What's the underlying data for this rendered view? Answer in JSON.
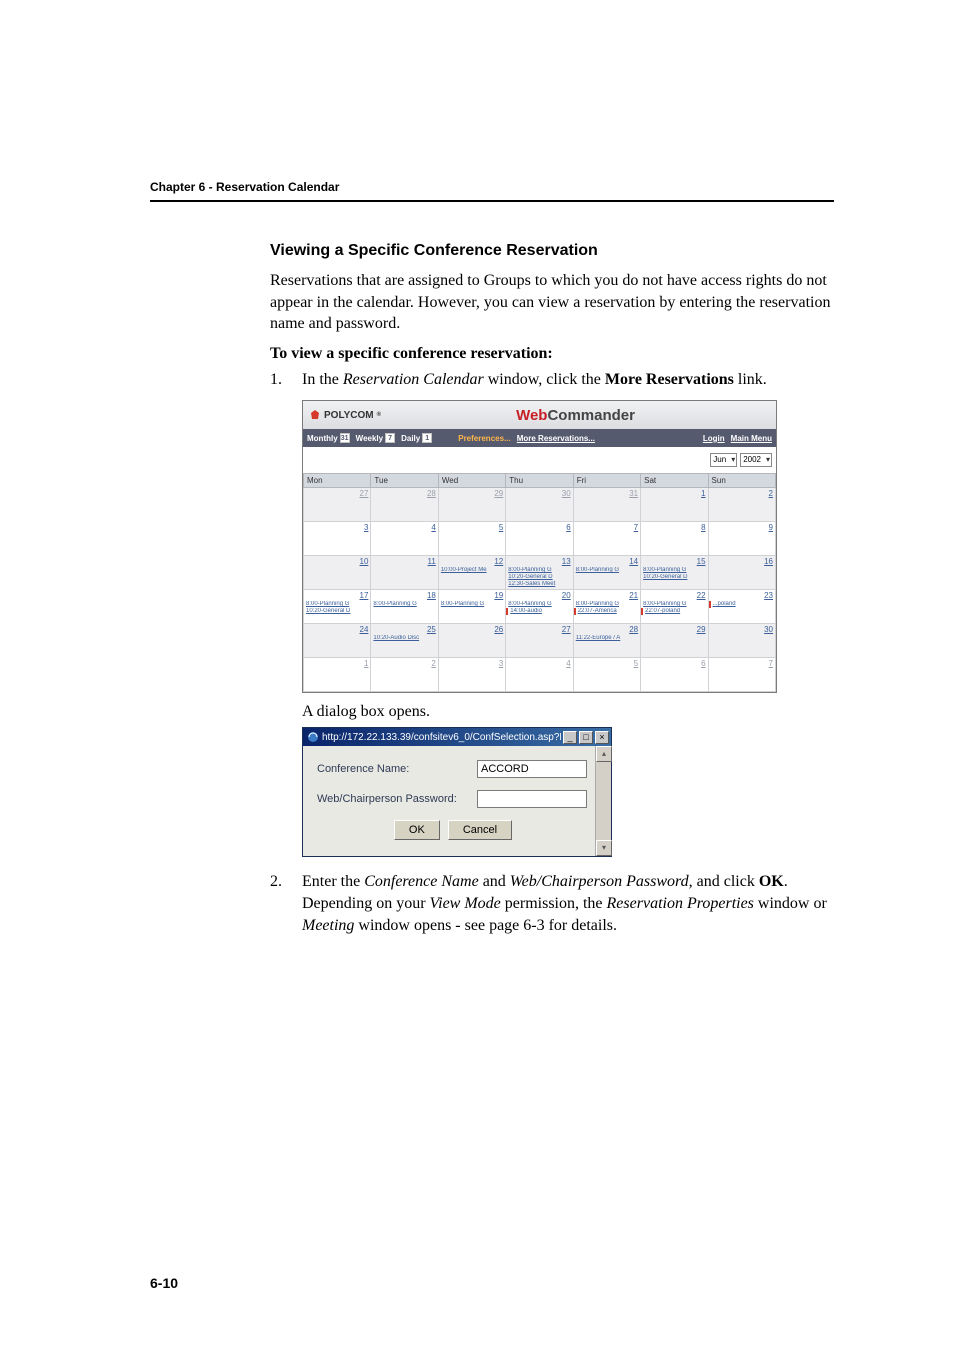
{
  "header": {
    "chapter": "Chapter 6 - Reservation Calendar"
  },
  "section": {
    "title": "Viewing a Specific Conference Reservation",
    "intro": "Reservations that are assigned to Groups to which you do not have access rights do not appear in the calendar. However, you can view a reservation by entering the reservation name and password.",
    "proc_title": "To view a specific conference reservation:"
  },
  "step1": {
    "num": "1.",
    "pre": "In the ",
    "win": "Reservation Calendar",
    "mid": " window, click the ",
    "link": "More Reservations",
    "post": " link."
  },
  "caption_dialog": "A dialog box opens.",
  "step2": {
    "num": "2.",
    "line1_pre": "Enter the ",
    "line1_i1": "Conference Name",
    "line1_mid": " and ",
    "line1_i2": "Web/Chairperson Password,",
    "line1_post": " and click ",
    "line1_b": "OK",
    "line1_end": ".",
    "line2_pre": "Depending on your ",
    "line2_i1": "View Mode",
    "line2_mid": " permission, the ",
    "line2_i2": "Reservation Properties",
    "line2_post": " window or ",
    "line2_i3": "Meeting",
    "line2_end": " window opens - see page 6-3 for details."
  },
  "page_num": "6-10",
  "cal": {
    "brand": "POLYCOM",
    "wc_web": "Web",
    "wc_rest": "Commander",
    "menu": {
      "monthly": "Monthly",
      "weekly": "Weekly",
      "daily": "Daily",
      "prefs": "Preferences...",
      "more": "More Reservations...",
      "login": "Login",
      "main_menu": "Main Menu",
      "month": "Jun",
      "year": "2002"
    },
    "days": [
      "Mon",
      "Tue",
      "Wed",
      "Thu",
      "Fri",
      "Sat",
      "Sun"
    ],
    "weeks": [
      {
        "cells": [
          {
            "n": "27",
            "faded": true
          },
          {
            "n": "28",
            "faded": true
          },
          {
            "n": "29",
            "faded": true
          },
          {
            "n": "30",
            "faded": true
          },
          {
            "n": "31",
            "faded": true
          },
          {
            "n": "1"
          },
          {
            "n": "2"
          }
        ]
      },
      {
        "cells": [
          {
            "n": "3"
          },
          {
            "n": "4"
          },
          {
            "n": "5"
          },
          {
            "n": "6"
          },
          {
            "n": "7"
          },
          {
            "n": "8"
          },
          {
            "n": "9"
          }
        ]
      },
      {
        "cells": [
          {
            "n": "10"
          },
          {
            "n": "11"
          },
          {
            "n": "12",
            "ev": [
              "10:00-Project Me"
            ]
          },
          {
            "n": "13",
            "ev": [
              "8:00-Planning G",
              "10:20-General D",
              "12:30-Sales Meet"
            ]
          },
          {
            "n": "14",
            "ev": [
              "8:00-Planning G"
            ]
          },
          {
            "n": "15",
            "ev": [
              "8:00-Planning G",
              "10:20-General D"
            ]
          },
          {
            "n": "16",
            "ev": []
          }
        ]
      },
      {
        "cells": [
          {
            "n": "17",
            "ev": [
              "8:00-Planning G",
              "10:20-General D"
            ]
          },
          {
            "n": "18",
            "ev": [
              "8:00-Planning G"
            ]
          },
          {
            "n": "19",
            "ev": [
              "8:00-Planning G"
            ]
          },
          {
            "n": "20",
            "ev": [
              "8:00-Planning G",
              "14:00-audio"
            ],
            "red": [
              false,
              true
            ]
          },
          {
            "n": "21",
            "ev": [
              "8:00-Planning G",
              "22:07-America"
            ],
            "red": [
              false,
              true
            ]
          },
          {
            "n": "22",
            "ev": [
              "8:00-Planning G",
              "22:07-poland"
            ],
            "red": [
              false,
              true
            ]
          },
          {
            "n": "23",
            "ev": [
              "...poland"
            ],
            "red": [
              true
            ]
          }
        ]
      },
      {
        "cells": [
          {
            "n": "24"
          },
          {
            "n": "25",
            "ev": [
              "10:20-Audio Disc"
            ]
          },
          {
            "n": "26"
          },
          {
            "n": "27"
          },
          {
            "n": "28",
            "ev": [
              "11:22-Europe / A"
            ]
          },
          {
            "n": "29"
          },
          {
            "n": "30"
          }
        ]
      },
      {
        "cells": [
          {
            "n": "1",
            "faded": true
          },
          {
            "n": "2",
            "faded": true
          },
          {
            "n": "3",
            "faded": true
          },
          {
            "n": "4",
            "faded": true
          },
          {
            "n": "5",
            "faded": true
          },
          {
            "n": "6",
            "faded": true
          },
          {
            "n": "7",
            "faded": true
          }
        ]
      }
    ]
  },
  "dialog": {
    "url": "http://172.22.133.39/confsitev6_0/ConfSelection.asp?R...",
    "label_name": "Conference Name:",
    "value_name": "ACCORD",
    "label_pwd": "Web/Chairperson Password:",
    "value_pwd": "",
    "ok": "OK",
    "cancel": "Cancel"
  }
}
